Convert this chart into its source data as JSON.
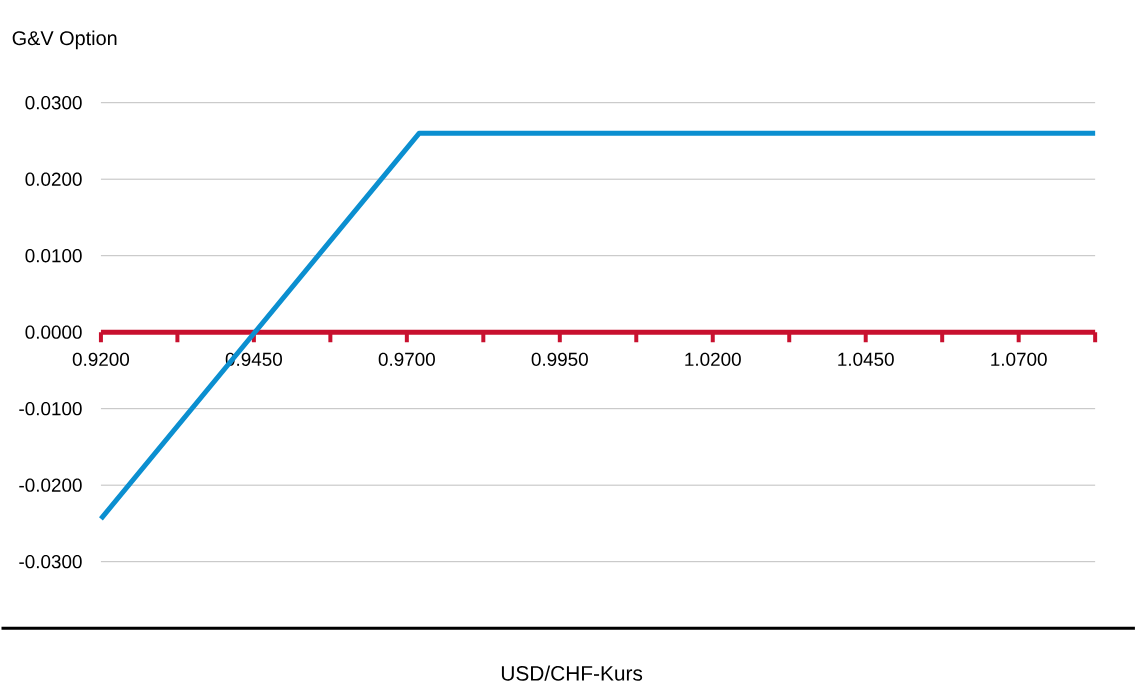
{
  "chart_data": {
    "type": "line",
    "ylabel": "G&V Option",
    "xlabel": "USD/CHF-Kurs",
    "x": [
      0.92,
      0.972,
      1.0825
    ],
    "series": [
      {
        "color": "#0b8fd0",
        "values": [
          -0.0244,
          0.026,
          0.026
        ]
      }
    ],
    "xlim": [
      0.92,
      1.0825
    ],
    "ylim": [
      -0.0387,
      0.03
    ],
    "xticks": [
      {
        "value": 0.92,
        "label": "0.9200"
      },
      {
        "value": 0.9325,
        "label": null
      },
      {
        "value": 0.945,
        "label": "0.9450"
      },
      {
        "value": 0.9575,
        "label": null
      },
      {
        "value": 0.97,
        "label": "0.9700"
      },
      {
        "value": 0.9825,
        "label": null
      },
      {
        "value": 0.995,
        "label": "0.9950"
      },
      {
        "value": 1.0075,
        "label": null
      },
      {
        "value": 1.02,
        "label": "1.0200"
      },
      {
        "value": 1.0325,
        "label": null
      },
      {
        "value": 1.045,
        "label": "1.0450"
      },
      {
        "value": 1.0575,
        "label": null
      },
      {
        "value": 1.07,
        "label": "1.0700"
      },
      {
        "value": 1.0825,
        "label": null
      }
    ],
    "yticks": [
      {
        "value": -0.03,
        "label": "-0.0300"
      },
      {
        "value": -0.02,
        "label": "-0.0200"
      },
      {
        "value": -0.01,
        "label": "-0.0100"
      },
      {
        "value": 0,
        "label": "0.0000"
      },
      {
        "value": 0.01,
        "label": "0.0100"
      },
      {
        "value": 0.02,
        "label": "0.0200"
      },
      {
        "value": 0.03,
        "label": "0.0300"
      }
    ],
    "grid": "y"
  }
}
